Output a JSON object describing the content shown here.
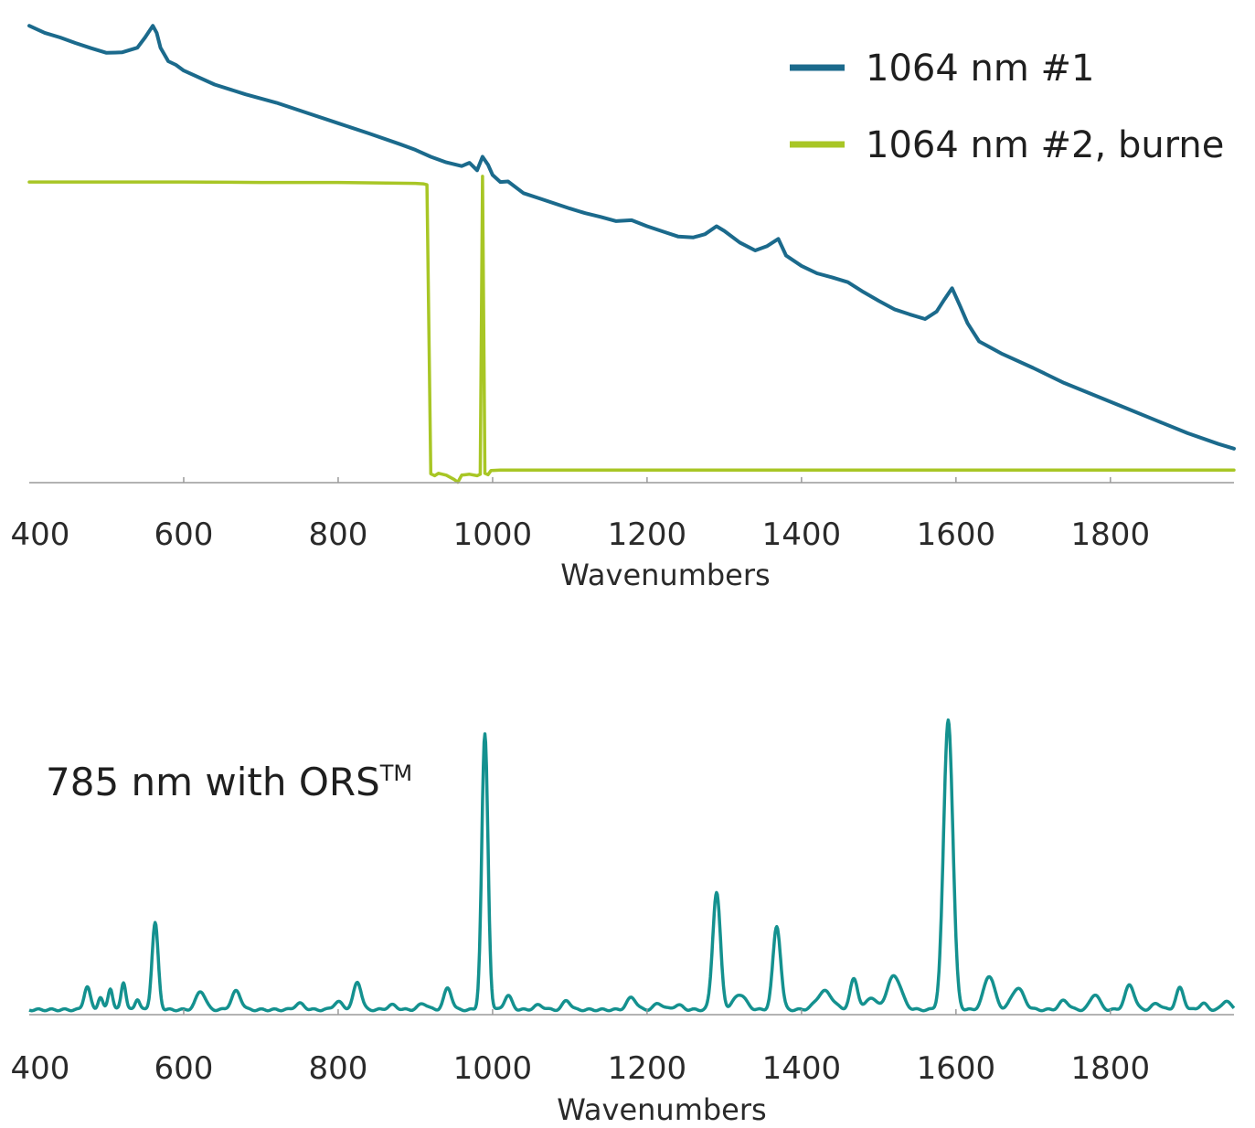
{
  "chart_data": [
    {
      "type": "line",
      "xlabel": "Wavenumbers",
      "ylabel": "",
      "xlim": [
        400,
        1960
      ],
      "ylim": [
        0,
        100
      ],
      "grid": false,
      "legend_position": "top-right",
      "ticks": [
        "400",
        "600",
        "800",
        "1000",
        "1200",
        "1400",
        "1600",
        "1800"
      ],
      "tick_values": [
        400,
        600,
        800,
        1000,
        1200,
        1400,
        1600,
        1800
      ],
      "series": [
        {
          "name": "1064 nm #1",
          "color": "#1b6a8c",
          "x": [
            400,
            420,
            440,
            460,
            480,
            500,
            520,
            540,
            550,
            560,
            565,
            570,
            580,
            590,
            600,
            640,
            680,
            720,
            760,
            800,
            840,
            880,
            900,
            920,
            940,
            960,
            970,
            980,
            987,
            994,
            1000,
            1010,
            1020,
            1040,
            1060,
            1080,
            1100,
            1120,
            1140,
            1160,
            1180,
            1200,
            1220,
            1240,
            1260,
            1275,
            1290,
            1300,
            1320,
            1340,
            1355,
            1370,
            1380,
            1400,
            1420,
            1440,
            1460,
            1480,
            1500,
            1520,
            1540,
            1560,
            1575,
            1585,
            1595,
            1605,
            1615,
            1630,
            1660,
            1700,
            1740,
            1780,
            1820,
            1860,
            1900,
            1940,
            1960
          ],
          "y": [
            98,
            96.5,
            95.5,
            94.3,
            93.2,
            92.2,
            92.3,
            93.3,
            95.5,
            98,
            96.5,
            93.3,
            90.4,
            89.6,
            88.4,
            85.4,
            83.3,
            81.5,
            79.3,
            77.1,
            74.9,
            72.6,
            71.4,
            69.9,
            68.7,
            67.9,
            68.6,
            67.0,
            69.9,
            68.2,
            66.0,
            64.5,
            64.6,
            62.1,
            61.0,
            59.9,
            58.8,
            57.8,
            57.0,
            56.1,
            56.3,
            55.0,
            53.9,
            52.8,
            52.6,
            53.3,
            55.0,
            54.0,
            51.5,
            49.8,
            50.7,
            52.3,
            48.7,
            46.5,
            44.9,
            44.0,
            43.0,
            40.9,
            39.0,
            37.2,
            36.1,
            35.1,
            36.7,
            39.3,
            41.7,
            38.0,
            34.2,
            30.3,
            27.6,
            24.6,
            21.4,
            18.7,
            16.0,
            13.3,
            10.6,
            8.3,
            7.3
          ]
        },
        {
          "name": "1064 nm #2, burne",
          "color": "#a8c625",
          "x": [
            400,
            500,
            600,
            700,
            800,
            850,
            900,
            910,
            915,
            920,
            925,
            930,
            940,
            950,
            955,
            960,
            970,
            980,
            984,
            987,
            990,
            994,
            998,
            1010,
            1100,
            1200,
            1400,
            1600,
            1800,
            1960
          ],
          "y": [
            64.5,
            64.5,
            64.5,
            64.4,
            64.4,
            64.3,
            64.2,
            64.1,
            63.9,
            1.9,
            1.5,
            2.0,
            1.6,
            0.7,
            0.1,
            1.6,
            1.8,
            1.5,
            1.8,
            65.7,
            2.0,
            1.7,
            2.6,
            2.7,
            2.7,
            2.7,
            2.7,
            2.7,
            2.7,
            2.7
          ]
        }
      ]
    },
    {
      "type": "line",
      "xlabel": "Wavenumbers",
      "ylabel": "",
      "xlim": [
        400,
        1960
      ],
      "ylim": [
        0,
        100
      ],
      "grid": false,
      "ticks": [
        "400",
        "600",
        "800",
        "1000",
        "1200",
        "1400",
        "1600",
        "1800"
      ],
      "tick_values": [
        400,
        600,
        800,
        1000,
        1200,
        1400,
        1600,
        1800
      ],
      "annotation": {
        "text": "785 nm with ORS",
        "sup": "TM"
      },
      "series": [
        {
          "color": "#14918f",
          "peaks": [
            [
              475,
              7.5,
              4
            ],
            [
              492,
              4,
              3
            ],
            [
              505,
              7,
              3
            ],
            [
              522,
              9,
              3
            ],
            [
              540,
              3.5,
              3
            ],
            [
              563,
              28,
              4
            ],
            [
              622,
              6,
              6
            ],
            [
              668,
              6,
              6
            ],
            [
              750,
              2,
              6
            ],
            [
              800,
              2.5,
              6
            ],
            [
              825,
              9,
              5
            ],
            [
              870,
              1.5,
              6
            ],
            [
              910,
              2,
              6
            ],
            [
              942,
              7,
              5
            ],
            [
              990,
              89,
              4
            ],
            [
              1020,
              4.5,
              5
            ],
            [
              1060,
              1.5,
              6
            ],
            [
              1096,
              3,
              5
            ],
            [
              1180,
              4,
              6
            ],
            [
              1215,
              2,
              6
            ],
            [
              1240,
              1.5,
              6
            ],
            [
              1290,
              38,
              5
            ],
            [
              1320,
              5,
              8
            ],
            [
              1368,
              27,
              5
            ],
            [
              1430,
              6,
              10
            ],
            [
              1468,
              10,
              5
            ],
            [
              1490,
              4,
              6
            ],
            [
              1520,
              11,
              9
            ],
            [
              1590,
              94,
              6
            ],
            [
              1643,
              11,
              7
            ],
            [
              1680,
              7,
              8
            ],
            [
              1740,
              3,
              6
            ],
            [
              1780,
              5,
              6
            ],
            [
              1825,
              8,
              6
            ],
            [
              1860,
              2,
              6
            ],
            [
              1890,
              7,
              5
            ],
            [
              1920,
              2,
              5
            ],
            [
              1950,
              3,
              5
            ]
          ]
        }
      ]
    }
  ]
}
